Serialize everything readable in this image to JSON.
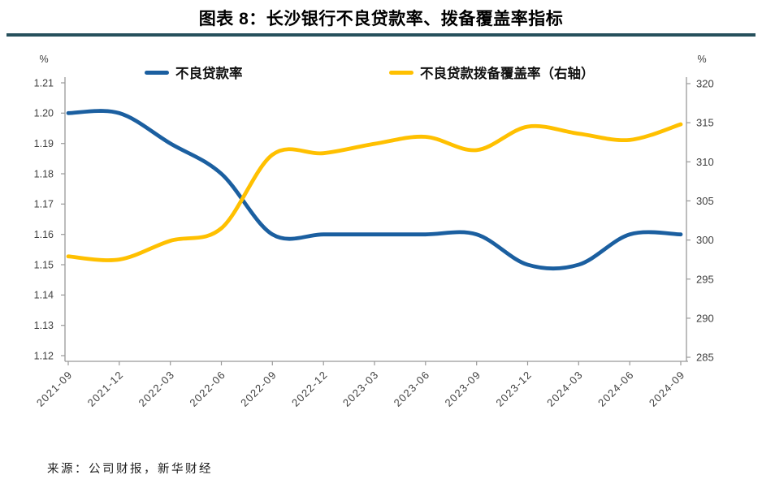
{
  "page": {
    "title": "图表 8：长沙银行不良贷款率、拨备覆盖率指标",
    "source": "来源：公司财报，新华财经"
  },
  "legend": [
    {
      "label": "不良贷款率",
      "color": "#1B5FA0"
    },
    {
      "label": "不良贷款拨备覆盖率（右轴）",
      "color": "#FFC000"
    }
  ],
  "chart_data": {
    "type": "line",
    "title": "图表 8：长沙银行不良贷款率、拨备覆盖率指标",
    "categories": [
      "2021-09",
      "2021-12",
      "2022-03",
      "2022-06",
      "2022-09",
      "2022-12",
      "2023-03",
      "2023-06",
      "2023-09",
      "2023-12",
      "2024-03",
      "2024-06",
      "2024-09"
    ],
    "series": [
      {
        "name": "不良贷款率",
        "axis": "left",
        "color": "#1B5FA0",
        "values": [
          1.2,
          1.2,
          1.19,
          1.18,
          1.16,
          1.16,
          1.16,
          1.16,
          1.16,
          1.15,
          1.15,
          1.16,
          1.16
        ]
      },
      {
        "name": "不良贷款拨备覆盖率（右轴）",
        "axis": "right",
        "color": "#FFC000",
        "values": [
          297.9,
          297.5,
          299.9,
          301.5,
          310.9,
          311.1,
          312.3,
          313.2,
          311.5,
          314.5,
          313.6,
          312.8,
          314.8
        ]
      }
    ],
    "left_axis": {
      "unit": "%",
      "min": 1.12,
      "max": 1.21,
      "step": 0.01,
      "decimals": 2
    },
    "right_axis": {
      "unit": "%",
      "min": 285,
      "max": 320,
      "step": 5,
      "decimals": 0
    },
    "grid": false,
    "legend_position": "top",
    "smoothed": true
  },
  "colors": {
    "title_rule": "#26505C",
    "axis_line": "#999999",
    "tick_text": "#3F3F3F"
  }
}
